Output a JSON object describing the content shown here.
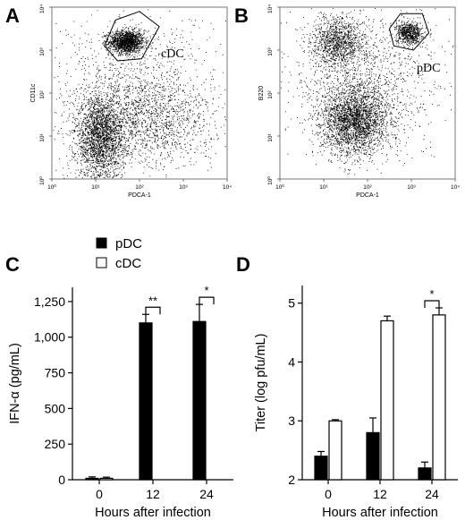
{
  "panels": {
    "A": "A",
    "B": "B",
    "C": "C",
    "D": "D"
  },
  "chart_data": [
    {
      "panel": "A",
      "type": "scatter",
      "xlabel": "PDCA-1",
      "ylabel": "CD11c",
      "x_ticks": [
        "10⁰",
        "10¹",
        "10²",
        "10³",
        "10⁴"
      ],
      "y_ticks": [
        "10⁰",
        "10¹",
        "10²",
        "10³",
        "10⁴"
      ],
      "xlim_log10": [
        0,
        4
      ],
      "ylim_log10": [
        0,
        4
      ],
      "gate_label": "cDC",
      "gate_polygon_log10": [
        [
          1.2,
          3.1
        ],
        [
          1.45,
          3.7
        ],
        [
          2.0,
          3.9
        ],
        [
          2.45,
          3.55
        ],
        [
          2.05,
          2.8
        ],
        [
          1.5,
          2.75
        ]
      ],
      "populations_log10": [
        {
          "cx": 1.7,
          "cy": 3.2,
          "sx": 0.2,
          "sy": 0.13,
          "n": 1500
        },
        {
          "cx": 1.1,
          "cy": 0.95,
          "sx": 0.28,
          "sy": 0.5,
          "n": 2300
        },
        {
          "cx": 2.2,
          "cy": 1.35,
          "sx": 0.75,
          "sy": 0.55,
          "n": 1400
        },
        {
          "cx": 1.8,
          "cy": 2.2,
          "sx": 1.0,
          "sy": 0.85,
          "n": 900
        }
      ]
    },
    {
      "panel": "B",
      "type": "scatter",
      "xlabel": "PDCA-1",
      "ylabel": "B220",
      "x_ticks": [
        "10⁰",
        "10¹",
        "10²",
        "10³",
        "10⁴"
      ],
      "y_ticks": [
        "10⁰",
        "10¹",
        "10²",
        "10³",
        "10⁴"
      ],
      "xlim_log10": [
        0,
        4
      ],
      "ylim_log10": [
        0,
        4
      ],
      "gate_label": "pDC",
      "gate_polygon_log10": [
        [
          2.5,
          3.5
        ],
        [
          2.75,
          3.85
        ],
        [
          3.25,
          3.85
        ],
        [
          3.4,
          3.4
        ],
        [
          3.05,
          3.0
        ],
        [
          2.6,
          3.1
        ]
      ],
      "populations_log10": [
        {
          "cx": 2.95,
          "cy": 3.4,
          "sx": 0.15,
          "sy": 0.13,
          "n": 700
        },
        {
          "cx": 1.35,
          "cy": 3.2,
          "sx": 0.3,
          "sy": 0.3,
          "n": 1100
        },
        {
          "cx": 1.7,
          "cy": 1.35,
          "sx": 0.38,
          "sy": 0.4,
          "n": 2600
        },
        {
          "cx": 1.9,
          "cy": 2.3,
          "sx": 0.9,
          "sy": 0.8,
          "n": 1300
        }
      ]
    },
    {
      "panel": "C",
      "type": "bar",
      "categories": [
        "0",
        "12",
        "24"
      ],
      "series": [
        {
          "name": "pDC",
          "values": [
            10,
            1100,
            1110
          ],
          "errors": [
            10,
            60,
            120
          ],
          "color": "#000000"
        },
        {
          "name": "cDC",
          "values": [
            10,
            0,
            0
          ],
          "errors": [
            8,
            0,
            0
          ],
          "color": "#ffffff"
        }
      ],
      "xlabel": "Hours after infection",
      "ylabel": "IFN-α (pg/mL)",
      "ylim": [
        0,
        1350
      ],
      "y_ticks": [
        0,
        250,
        500,
        750,
        1000,
        1250
      ],
      "y_tick_labels": [
        "0",
        "250",
        "500",
        "750",
        "1,000",
        "1,250"
      ],
      "significance": [
        {
          "category": "12",
          "label": "**"
        },
        {
          "category": "24",
          "label": "*"
        }
      ]
    },
    {
      "panel": "D",
      "type": "bar",
      "categories": [
        "0",
        "12",
        "24"
      ],
      "series": [
        {
          "name": "pDC",
          "values": [
            2.4,
            2.8,
            2.2
          ],
          "errors": [
            0.08,
            0.25,
            0.1
          ],
          "color": "#000000"
        },
        {
          "name": "cDC",
          "values": [
            3.0,
            4.7,
            4.8
          ],
          "errors": [
            0.02,
            0.08,
            0.12
          ],
          "color": "#ffffff"
        }
      ],
      "xlabel": "Hours after infection",
      "ylabel": "Titer (log pfu/mL)",
      "ylim": [
        2,
        5.3
      ],
      "y_ticks": [
        2,
        3,
        4,
        5
      ],
      "y_tick_labels": [
        "2",
        "3",
        "4",
        "5"
      ],
      "significance": [
        {
          "category": "24",
          "label": "*"
        }
      ]
    }
  ],
  "legend": {
    "items": [
      {
        "label": "pDC",
        "color": "#000000"
      },
      {
        "label": "cDC",
        "color": "#ffffff"
      }
    ]
  }
}
